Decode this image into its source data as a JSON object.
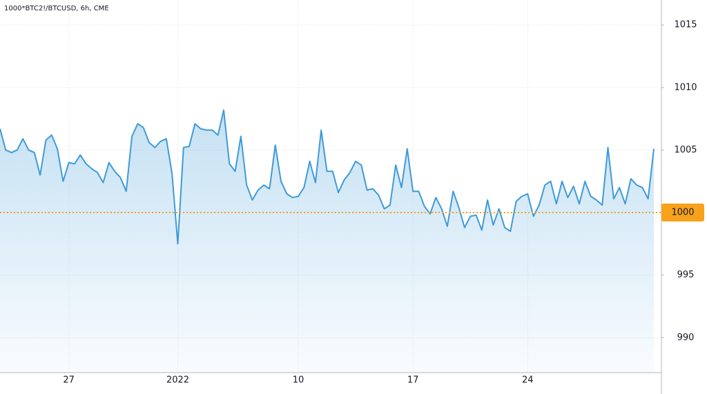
{
  "chart_data": {
    "type": "line",
    "title": "1000*BTC2!/BTCUSD, 6h, CME",
    "categories": [
      null,
      null,
      null,
      null,
      null,
      null,
      null,
      null,
      null,
      null,
      null,
      null,
      "27",
      null,
      null,
      null,
      null,
      null,
      null,
      null,
      null,
      null,
      null,
      null,
      null,
      null,
      null,
      null,
      null,
      null,
      null,
      "2022",
      null,
      null,
      null,
      null,
      null,
      null,
      null,
      null,
      null,
      null,
      null,
      null,
      null,
      null,
      null,
      null,
      null,
      null,
      null,
      null,
      "10",
      null,
      null,
      null,
      null,
      null,
      null,
      null,
      null,
      null,
      null,
      null,
      null,
      null,
      null,
      null,
      null,
      null,
      null,
      null,
      "17",
      null,
      null,
      null,
      null,
      null,
      null,
      null,
      null,
      null,
      null,
      null,
      null,
      null,
      null,
      null,
      null,
      null,
      null,
      null,
      "24",
      null,
      null,
      null,
      null,
      null,
      null,
      null,
      null,
      null,
      null,
      null,
      null,
      null,
      null,
      null,
      null,
      null,
      null,
      null,
      null,
      null,
      null
    ],
    "series": [
      {
        "name": "1000*BTC2!/BTCUSD",
        "color": "#3d9ad8",
        "values": [
          1006.7,
          1005.0,
          1004.8,
          1005.0,
          1005.9,
          1005.0,
          1004.8,
          1003.0,
          1005.8,
          1006.2,
          1005.1,
          1002.5,
          1004.0,
          1003.9,
          1004.6,
          1003.9,
          1003.5,
          1003.2,
          1002.4,
          1004.0,
          1003.3,
          1002.8,
          1001.7,
          1006.1,
          1007.1,
          1006.8,
          1005.6,
          1005.2,
          1005.7,
          1005.9,
          1003.1,
          997.5,
          1005.2,
          1005.3,
          1007.1,
          1006.7,
          1006.6,
          1006.6,
          1006.2,
          1008.2,
          1003.9,
          1003.3,
          1006.1,
          1002.2,
          1001.0,
          1001.8,
          1002.2,
          1001.9,
          1005.4,
          1002.5,
          1001.5,
          1001.2,
          1001.3,
          1002.0,
          1004.1,
          1002.4,
          1006.6,
          1003.3,
          1003.3,
          1001.6,
          1002.6,
          1003.2,
          1004.1,
          1003.8,
          1001.8,
          1001.9,
          1001.4,
          1000.3,
          1000.6,
          1003.8,
          1002.0,
          1005.1,
          1001.7,
          1001.7,
          1000.5,
          999.9,
          1001.2,
          1000.3,
          998.9,
          1001.7,
          1000.4,
          998.8,
          999.7,
          999.8,
          998.6,
          1001.0,
          999.0,
          1000.3,
          998.8,
          998.5,
          1000.9,
          1001.3,
          1001.5,
          999.7,
          1000.6,
          1002.2,
          1002.5,
          1000.7,
          1002.5,
          1001.2,
          1002.1,
          1000.7,
          1002.5,
          1001.3,
          1001.0,
          1000.6,
          1005.2,
          1001.1,
          1002.0,
          1000.7,
          1002.7,
          1002.2,
          1002.0,
          1001.1,
          1005.1
        ]
      }
    ],
    "ylim": [
      987.2,
      1017
    ],
    "yticks": [
      990,
      995,
      1000,
      1005,
      1010,
      1015
    ],
    "grid": true,
    "price_line": 1000,
    "price_line_color": "#f7a21b"
  }
}
